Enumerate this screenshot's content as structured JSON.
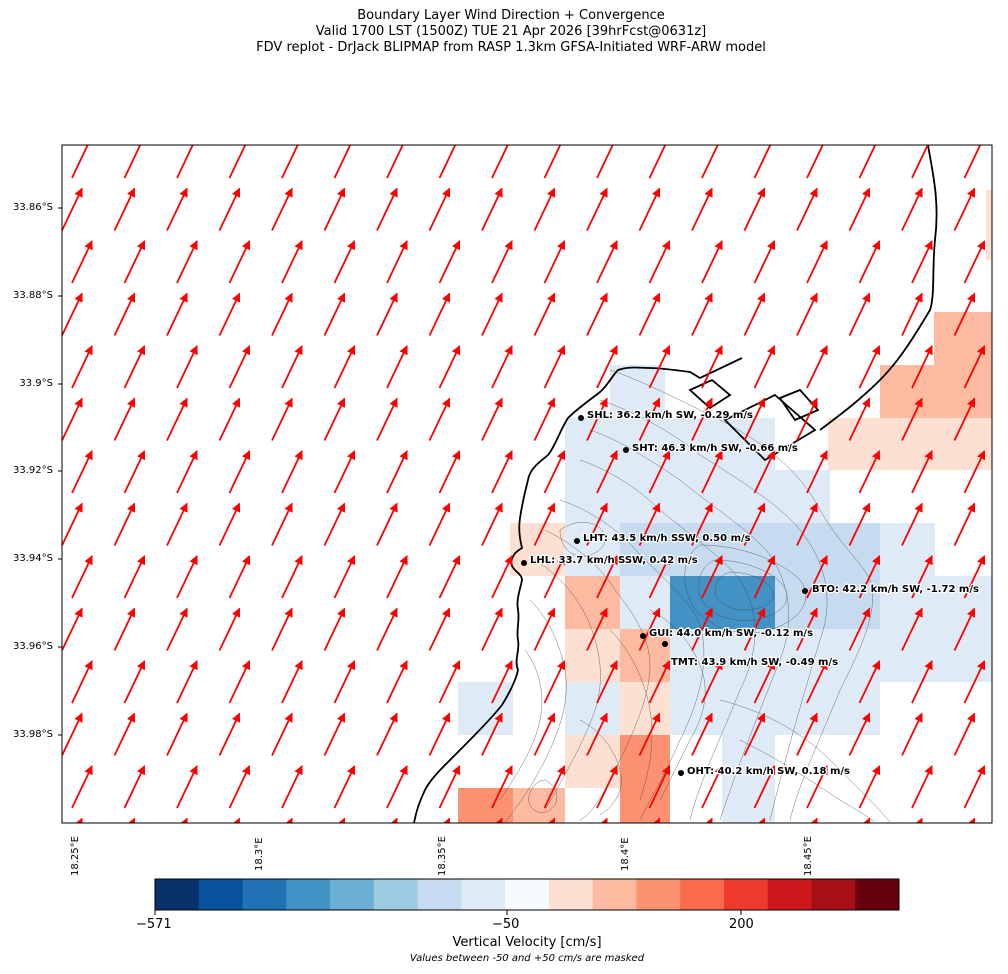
{
  "title": {
    "line1": "Boundary Layer Wind Direction + Convergence",
    "line2": "Valid 1700 LST (1500Z) TUE 21 Apr 2026 [39hrFcst@0631z]",
    "line3": "FDV replot - DrJack BLIPMAP from RASP 1.3km GFSA-Initiated WRF-ARW model"
  },
  "axes": {
    "lat_ticks": [
      "33.86°S",
      "33.88°S",
      "33.9°S",
      "33.92°S",
      "33.94°S",
      "33.96°S",
      "33.98°S"
    ],
    "lon_ticks": [
      "18.25°E",
      "18.3°E",
      "18.35°E",
      "18.4°E",
      "18.45°E"
    ]
  },
  "colorbar": {
    "label": "Vertical Velocity [cm/s]",
    "note": "Values between -50 and +50 cm/s are masked",
    "tick_labels": [
      "−571",
      "−50",
      "200"
    ],
    "colors": [
      "#08306b",
      "#08519c",
      "#2171b5",
      "#4292c6",
      "#6baed6",
      "#9ecae1",
      "#c6dbef",
      "#deebf7",
      "#f7fbff",
      "#fee0d2",
      "#fcbba1",
      "#fc9272",
      "#fb6a4a",
      "#ef3b2c",
      "#cb181d",
      "#a50f15",
      "#67000d"
    ]
  },
  "wind_vectors": {
    "color": "#ff0000",
    "direction": "SW"
  },
  "stations": [
    {
      "code": "SHL",
      "label": "SHL: 36.2 km/h SW, -0.29 m/s"
    },
    {
      "code": "SHT",
      "label": "SHT: 46.3 km/h SW, -0.66 m/s"
    },
    {
      "code": "LHT",
      "label": "LHT: 43.5 km/h SSW, 0.50 m/s"
    },
    {
      "code": "LHL",
      "label": "LHL: 33.7 km/h SSW, 0.42 m/s"
    },
    {
      "code": "BTO",
      "label": "BTO: 42.2 km/h SW, -1.72 m/s"
    },
    {
      "code": "GUI",
      "label": "GUI: 44.0 km/h SW, -0.12 m/s"
    },
    {
      "code": "TMT",
      "label": "TMT: 43.9 km/h SW, -0.49 m/s"
    },
    {
      "code": "OHT",
      "label": "OHT: 40.2 km/h SW, 0.18 m/s"
    }
  ]
}
